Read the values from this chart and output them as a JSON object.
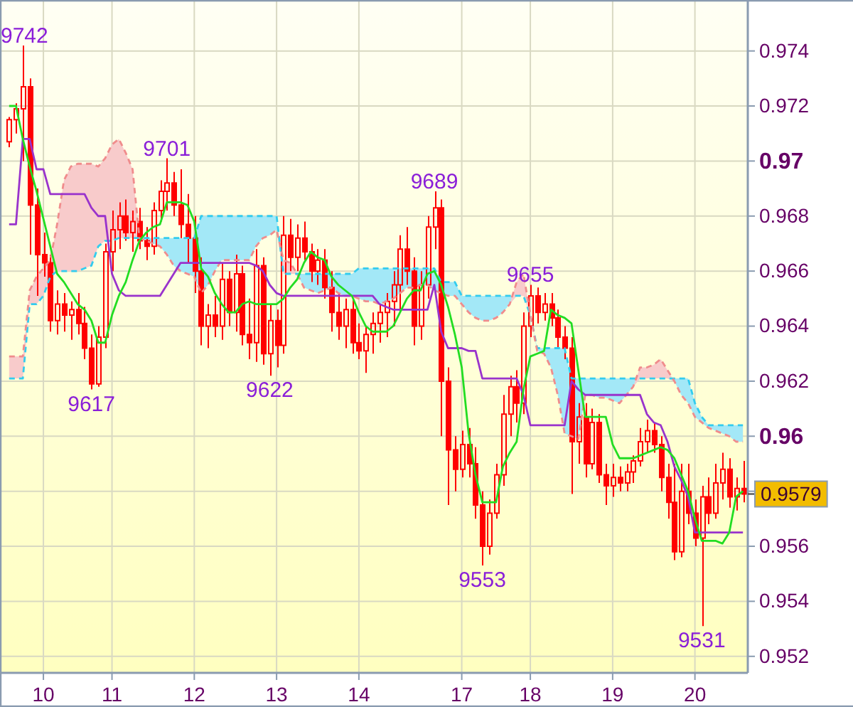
{
  "chart_data": {
    "type": "candlestick",
    "color": "#ff0000",
    "ylim": [
      0.9514,
      0.9758
    ],
    "yticks": [
      0.952,
      0.954,
      0.956,
      {
        "value": 0.958,
        "label": null
      },
      0.96,
      0.962,
      0.964,
      0.966,
      0.968,
      0.97,
      0.972,
      0.974
    ],
    "grid": true,
    "categories": [
      null,
      null,
      null,
      null,
      null,
      "10",
      null,
      null,
      null,
      null,
      null,
      null,
      null,
      null,
      null,
      "11",
      null,
      null,
      null,
      null,
      null,
      null,
      null,
      null,
      null,
      null,
      null,
      "12",
      null,
      null,
      null,
      null,
      null,
      null,
      null,
      null,
      null,
      null,
      null,
      "13",
      null,
      null,
      null,
      null,
      null,
      null,
      null,
      null,
      null,
      null,
      null,
      "14",
      null,
      null,
      null,
      null,
      null,
      null,
      null,
      null,
      null,
      null,
      null,
      null,
      null,
      null,
      "17",
      null,
      null,
      null,
      null,
      null,
      null,
      null,
      null,
      null,
      "18",
      null,
      null,
      null,
      null,
      null,
      null,
      null,
      null,
      null,
      null,
      null,
      "19",
      null,
      null,
      null,
      null,
      null,
      null,
      null,
      null,
      null,
      null,
      null,
      "20",
      null,
      null,
      null,
      null,
      null,
      null,
      null
    ],
    "ohlc": [
      [
        0.9707,
        0.9716,
        0.9705,
        0.9715
      ],
      [
        0.9715,
        0.9721,
        0.971,
        0.9719
      ],
      [
        0.9719,
        0.9742,
        0.97,
        0.9727
      ],
      [
        0.9727,
        0.973,
        0.9666,
        0.9684
      ],
      [
        0.9684,
        0.969,
        0.9651,
        0.9666
      ],
      [
        0.9666,
        0.9674,
        0.9658,
        0.9663
      ],
      [
        0.9663,
        0.9666,
        0.9638,
        0.9642
      ],
      [
        0.9642,
        0.9653,
        0.9637,
        0.9648
      ],
      [
        0.9648,
        0.9652,
        0.9638,
        0.9644
      ],
      [
        0.9644,
        0.9649,
        0.9635,
        0.9646
      ],
      [
        0.9646,
        0.9652,
        0.9637,
        0.9641
      ],
      [
        0.9641,
        0.9647,
        0.9628,
        0.9632
      ],
      [
        0.9632,
        0.9637,
        0.9617,
        0.9619
      ],
      [
        0.9619,
        0.964,
        0.9618,
        0.9636
      ],
      [
        0.9636,
        0.967,
        0.9632,
        0.9667
      ],
      [
        0.9667,
        0.9682,
        0.966,
        0.9675
      ],
      [
        0.9675,
        0.9685,
        0.9668,
        0.968
      ],
      [
        0.968,
        0.9686,
        0.9671,
        0.9674
      ],
      [
        0.9674,
        0.9682,
        0.9667,
        0.9678
      ],
      [
        0.9678,
        0.9683,
        0.9668,
        0.9671
      ],
      [
        0.9671,
        0.9676,
        0.9664,
        0.9669
      ],
      [
        0.9669,
        0.9685,
        0.9666,
        0.9682
      ],
      [
        0.9682,
        0.9693,
        0.9678,
        0.9689
      ],
      [
        0.9689,
        0.9701,
        0.9682,
        0.9692
      ],
      [
        0.9692,
        0.9696,
        0.968,
        0.9684
      ],
      [
        0.9684,
        0.9697,
        0.9672,
        0.9677
      ],
      [
        0.9677,
        0.9688,
        0.9663,
        0.9672
      ],
      [
        0.9672,
        0.968,
        0.9652,
        0.966
      ],
      [
        0.966,
        0.9665,
        0.9633,
        0.964
      ],
      [
        0.964,
        0.9648,
        0.9632,
        0.9644
      ],
      [
        0.9644,
        0.9651,
        0.9636,
        0.964
      ],
      [
        0.964,
        0.9663,
        0.9635,
        0.9657
      ],
      [
        0.9657,
        0.966,
        0.964,
        0.9645
      ],
      [
        0.9645,
        0.9666,
        0.9638,
        0.9659
      ],
      [
        0.9659,
        0.9662,
        0.9633,
        0.9637
      ],
      [
        0.9637,
        0.965,
        0.9628,
        0.9634
      ],
      [
        0.9634,
        0.9668,
        0.9627,
        0.9662
      ],
      [
        0.9662,
        0.9665,
        0.9626,
        0.963
      ],
      [
        0.963,
        0.9648,
        0.9622,
        0.9642
      ],
      [
        0.9642,
        0.9646,
        0.9625,
        0.9633
      ],
      [
        0.9633,
        0.968,
        0.963,
        0.9673
      ],
      [
        0.9673,
        0.9679,
        0.966,
        0.9665
      ],
      [
        0.9665,
        0.9677,
        0.966,
        0.9672
      ],
      [
        0.9672,
        0.9678,
        0.9664,
        0.9667
      ],
      [
        0.9667,
        0.967,
        0.9656,
        0.966
      ],
      [
        0.966,
        0.9668,
        0.9655,
        0.9664
      ],
      [
        0.9664,
        0.9668,
        0.965,
        0.9654
      ],
      [
        0.9654,
        0.966,
        0.9638,
        0.9645
      ],
      [
        0.9645,
        0.9652,
        0.9635,
        0.964
      ],
      [
        0.964,
        0.965,
        0.9632,
        0.9646
      ],
      [
        0.9646,
        0.965,
        0.963,
        0.9634
      ],
      [
        0.9634,
        0.9641,
        0.9628,
        0.9631
      ],
      [
        0.9631,
        0.964,
        0.9623,
        0.9637
      ],
      [
        0.9637,
        0.9645,
        0.963,
        0.9641
      ],
      [
        0.9641,
        0.9648,
        0.9634,
        0.9645
      ],
      [
        0.9645,
        0.9652,
        0.9636,
        0.9649
      ],
      [
        0.9649,
        0.966,
        0.964,
        0.9655
      ],
      [
        0.9655,
        0.9673,
        0.9645,
        0.9668
      ],
      [
        0.9668,
        0.9676,
        0.9655,
        0.966
      ],
      [
        0.966,
        0.9665,
        0.9633,
        0.964
      ],
      [
        0.964,
        0.966,
        0.9635,
        0.9655
      ],
      [
        0.9655,
        0.968,
        0.965,
        0.9676
      ],
      [
        0.9676,
        0.9689,
        0.9668,
        0.9683
      ],
      [
        0.9683,
        0.9686,
        0.96,
        0.962
      ],
      [
        0.962,
        0.9625,
        0.9575,
        0.9595
      ],
      [
        0.9595,
        0.96,
        0.958,
        0.9588
      ],
      [
        0.9588,
        0.9602,
        0.9585,
        0.9597
      ],
      [
        0.9597,
        0.9603,
        0.9585,
        0.959
      ],
      [
        0.959,
        0.9596,
        0.957,
        0.9575
      ],
      [
        0.9575,
        0.958,
        0.9553,
        0.956
      ],
      [
        0.956,
        0.9577,
        0.9557,
        0.9572
      ],
      [
        0.9572,
        0.959,
        0.957,
        0.9586
      ],
      [
        0.9586,
        0.9615,
        0.9582,
        0.9608
      ],
      [
        0.9608,
        0.9622,
        0.96,
        0.9618
      ],
      [
        0.9618,
        0.9624,
        0.9605,
        0.9612
      ],
      [
        0.9612,
        0.9645,
        0.9608,
        0.964
      ],
      [
        0.964,
        0.9655,
        0.9636,
        0.9651
      ],
      [
        0.9651,
        0.9654,
        0.9641,
        0.9645
      ],
      [
        0.9645,
        0.9652,
        0.9642,
        0.9648
      ],
      [
        0.9648,
        0.9652,
        0.964,
        0.9643
      ],
      [
        0.9643,
        0.9646,
        0.9632,
        0.9636
      ],
      [
        0.9636,
        0.964,
        0.9628,
        0.9632
      ],
      [
        0.9632,
        0.9636,
        0.9579,
        0.9598
      ],
      [
        0.9598,
        0.9612,
        0.959,
        0.9607
      ],
      [
        0.9607,
        0.9612,
        0.9585,
        0.959
      ],
      [
        0.959,
        0.961,
        0.9588,
        0.9605
      ],
      [
        0.9605,
        0.9608,
        0.9583,
        0.9586
      ],
      [
        0.9586,
        0.959,
        0.9575,
        0.9582
      ],
      [
        0.9582,
        0.959,
        0.9578,
        0.9585
      ],
      [
        0.9585,
        0.9589,
        0.958,
        0.9583
      ],
      [
        0.9583,
        0.959,
        0.958,
        0.9587
      ],
      [
        0.9587,
        0.9593,
        0.9583,
        0.9591
      ],
      [
        0.9591,
        0.9603,
        0.9589,
        0.9598
      ],
      [
        0.9598,
        0.9606,
        0.9594,
        0.9602
      ],
      [
        0.9602,
        0.9605,
        0.9594,
        0.9597
      ],
      [
        0.9597,
        0.96,
        0.958,
        0.9585
      ],
      [
        0.9585,
        0.959,
        0.957,
        0.9576
      ],
      [
        0.9576,
        0.959,
        0.9555,
        0.9558
      ],
      [
        0.9558,
        0.959,
        0.9556,
        0.958
      ],
      [
        0.958,
        0.959,
        0.9568,
        0.9572
      ],
      [
        0.9572,
        0.9577,
        0.956,
        0.9563
      ],
      [
        0.9563,
        0.9582,
        0.9531,
        0.9578
      ],
      [
        0.9578,
        0.9585,
        0.9568,
        0.9572
      ],
      [
        0.9572,
        0.959,
        0.957,
        0.9583
      ],
      [
        0.9583,
        0.9594,
        0.9577,
        0.9588
      ],
      [
        0.9588,
        0.9592,
        0.9574,
        0.9578
      ],
      [
        0.9578,
        0.9585,
        0.9573,
        0.9581
      ],
      [
        0.9581,
        0.9591,
        0.9576,
        0.9579
      ]
    ],
    "series": [
      {
        "type": "line",
        "color": "#33ccee",
        "line_style": "dashed",
        "values": [
          0.9621,
          0.9621,
          0.9621,
          0.9648,
          0.9648,
          0.9651,
          0.9658,
          0.966,
          0.966,
          0.966,
          0.966,
          0.9661,
          0.9662,
          0.9669,
          0.9671,
          0.9671,
          0.9672,
          0.9672,
          0.9672,
          0.9672,
          0.9672,
          0.9672,
          0.9672,
          0.9672,
          0.9672,
          0.9672,
          0.9672,
          0.9672,
          0.968,
          0.968,
          0.968,
          0.968,
          0.968,
          0.968,
          0.968,
          0.968,
          0.968,
          0.968,
          0.968,
          0.968,
          0.9659,
          0.9659,
          0.9659,
          0.9659,
          0.9659,
          0.9659,
          0.9659,
          0.9659,
          0.9659,
          0.9659,
          0.9659,
          0.9661,
          0.9661,
          0.9661,
          0.9661,
          0.9661,
          0.9661,
          0.9661,
          0.9661,
          0.9661,
          0.9661,
          0.9661,
          0.9661,
          0.9656,
          0.9656,
          0.9656,
          0.9651,
          0.9651,
          0.9651,
          0.9651,
          0.9651,
          0.9651,
          0.9651,
          0.9651,
          0.9651,
          0.9651,
          0.9644,
          0.9632,
          0.9632,
          0.9632,
          0.9632,
          0.9632,
          0.9621,
          0.9621,
          0.9621,
          0.9621,
          0.9621,
          0.9621,
          0.9621,
          0.9621,
          0.9621,
          0.9621,
          0.9621,
          0.9621,
          0.9621,
          0.9621,
          0.9621,
          0.9621,
          0.9621,
          0.9621,
          0.9612,
          0.9607,
          0.9604,
          0.9604,
          0.9604,
          0.9604,
          0.9604,
          0.9604
        ],
        "lower": [
          0.9621,
          0.9621,
          0.9621,
          0.9648,
          0.9648,
          0.9651,
          0.9658,
          0.966,
          0.966,
          0.966,
          0.966,
          0.9661,
          0.9662,
          0.9669,
          0.9671,
          0.9671,
          0.9672,
          0.9672,
          0.9672,
          0.9672,
          0.9671,
          0.967,
          0.9669,
          0.9666,
          0.9662,
          0.966,
          0.9659,
          0.9658,
          0.9652,
          0.9655,
          0.966,
          0.9664,
          0.9664,
          0.9664,
          0.9664,
          0.9664,
          0.9669,
          0.9672,
          0.9673,
          0.9675,
          0.9659,
          0.9659,
          0.9659,
          0.9654,
          0.9653,
          0.9652,
          0.9653,
          0.9654,
          0.9652,
          0.9651,
          0.9651,
          0.965,
          0.9649,
          0.9649,
          0.9648,
          0.9649,
          0.965,
          0.9652,
          0.9654,
          0.9654,
          0.9655,
          0.9655,
          0.9653,
          0.9652,
          0.9651,
          0.9651,
          0.9648,
          0.9645,
          0.9643,
          0.9642,
          0.9642,
          0.9643,
          0.9645,
          0.9648,
          0.9651,
          0.9651,
          0.9644,
          0.9631,
          0.963,
          0.9625,
          0.9615,
          0.9601,
          0.96,
          0.9599,
          0.9615,
          0.9615,
          0.9614,
          0.9614,
          0.9613,
          0.9612,
          0.9615,
          0.9618,
          0.9621,
          0.9621,
          0.9621,
          0.9621,
          0.9621,
          0.962,
          0.9615,
          0.9612,
          0.9607,
          0.9605,
          0.9603,
          0.9602,
          0.9601,
          0.96,
          0.9598,
          0.9598
        ],
        "upper": [
          0.9621,
          0.9621,
          0.9621,
          0.9648,
          0.9648,
          0.9651,
          0.9658,
          0.966,
          0.966,
          0.966,
          0.966,
          0.9661,
          0.9662,
          0.9669,
          0.9671,
          0.9671,
          0.9672,
          0.9672,
          0.9672,
          0.9672,
          0.9672,
          0.9672,
          0.9672,
          0.9672,
          0.9672,
          0.9672,
          0.9672,
          0.9672,
          0.968,
          0.968,
          0.968,
          0.968,
          0.968,
          0.968,
          0.968,
          0.968,
          0.968,
          0.968,
          0.968,
          0.968,
          0.9659,
          0.9659,
          0.9659,
          0.9659,
          0.9659,
          0.9659,
          0.9659,
          0.9659,
          0.9659,
          0.9659,
          0.9659,
          0.9661,
          0.9661,
          0.9661,
          0.9661,
          0.9661,
          0.9661,
          0.9661,
          0.9661,
          0.9661,
          0.9661,
          0.9661,
          0.9661,
          0.9656,
          0.9656,
          0.9656,
          0.9651,
          0.9651,
          0.9651,
          0.9651,
          0.9651,
          0.9651,
          0.9651,
          0.9651,
          0.9651,
          0.9651,
          0.9644,
          0.9632,
          0.9632,
          0.9632,
          0.9632,
          0.9632,
          0.9621,
          0.9621,
          0.9621,
          0.9621,
          0.9621,
          0.9621,
          0.9621,
          0.9621,
          0.9621,
          0.9621,
          0.9621,
          0.9621,
          0.9621,
          0.9621,
          0.9621,
          0.9621,
          0.9621,
          0.9621,
          0.9612,
          0.9607,
          0.9604,
          0.9604,
          0.9604,
          0.9604,
          0.9604,
          0.9604
        ]
      },
      {
        "type": "line",
        "color": "#f08c8c",
        "line_style": "dashed",
        "values": [
          0.9629,
          0.9629,
          0.9629,
          0.9653,
          0.9658,
          0.9661,
          0.9664,
          0.9677,
          0.9693,
          0.9698,
          0.9699,
          0.9699,
          0.9699,
          0.9698,
          0.9701,
          0.9706,
          0.9708,
          0.9703,
          0.9697,
          0.9672,
          0.9671,
          0.967,
          0.9669,
          0.9666,
          0.9662,
          0.966,
          0.9659,
          0.9658,
          0.9652,
          0.9655,
          0.966,
          0.9664,
          0.9664,
          0.9664,
          0.9664,
          0.9664,
          0.9669,
          0.9672,
          0.9673,
          0.9675,
          0.9664,
          0.9663,
          0.9659,
          0.9654,
          0.9653,
          0.9652,
          0.9653,
          0.9654,
          0.9652,
          0.9651,
          0.9651,
          0.965,
          0.9649,
          0.9649,
          0.9648,
          0.9649,
          0.965,
          0.9652,
          0.9654,
          0.9654,
          0.9655,
          0.9655,
          0.9653,
          0.9652,
          0.9651,
          0.9651,
          0.9648,
          0.9645,
          0.9643,
          0.9642,
          0.9642,
          0.9643,
          0.9645,
          0.9648,
          0.9656,
          0.9659,
          0.9644,
          0.9631,
          0.963,
          0.9625,
          0.9615,
          0.9601,
          0.96,
          0.9599,
          0.9615,
          0.9615,
          0.9614,
          0.9614,
          0.9613,
          0.9612,
          0.9615,
          0.9618,
          0.9625,
          0.9625,
          0.9626,
          0.9628,
          0.9624,
          0.962,
          0.9615,
          0.9612,
          0.9607,
          0.9605,
          0.9603,
          0.9602,
          0.9601,
          0.96,
          0.9598,
          0.9598
        ],
        "lower": [
          0.9621,
          0.9621,
          0.9621,
          0.9648,
          0.9648,
          0.9651,
          0.9658,
          0.966,
          0.966,
          0.966,
          0.966,
          0.9661,
          0.9662,
          0.9669,
          0.9671,
          0.9671,
          0.9672,
          0.9672,
          0.9672,
          0.9672,
          0.9671,
          0.967,
          0.9669,
          0.9666,
          0.9662,
          0.966,
          0.9659,
          0.9658,
          0.9652,
          0.9655,
          0.966,
          0.9664,
          0.9664,
          0.9664,
          0.9664,
          0.9664,
          0.9669,
          0.9672,
          0.9673,
          0.9675,
          0.9659,
          0.9659,
          0.9659,
          0.9654,
          0.9653,
          0.9652,
          0.9653,
          0.9654,
          0.9652,
          0.9651,
          0.9651,
          0.965,
          0.9649,
          0.9649,
          0.9648,
          0.9649,
          0.965,
          0.9652,
          0.9654,
          0.9654,
          0.9655,
          0.9655,
          0.9653,
          0.9652,
          0.9651,
          0.9651,
          0.9648,
          0.9645,
          0.9643,
          0.9642,
          0.9642,
          0.9643,
          0.9645,
          0.9648,
          0.9651,
          0.9651,
          0.9644,
          0.9631,
          0.963,
          0.9625,
          0.9615,
          0.9601,
          0.96,
          0.9599,
          0.9615,
          0.9615,
          0.9614,
          0.9614,
          0.9613,
          0.9612,
          0.9615,
          0.9618,
          0.9621,
          0.9621,
          0.9621,
          0.9621,
          0.9621,
          0.962,
          0.9615,
          0.9612,
          0.9607,
          0.9605,
          0.9603,
          0.9602,
          0.9601,
          0.96,
          0.9598,
          0.9598
        ],
        "upper": [
          0.9629,
          0.9629,
          0.9629,
          0.9653,
          0.9658,
          0.9661,
          0.9664,
          0.9677,
          0.9693,
          0.9698,
          0.9699,
          0.9699,
          0.9699,
          0.9698,
          0.9701,
          0.9706,
          0.9708,
          0.9703,
          0.9697,
          0.9672,
          0.9671,
          0.967,
          0.9669,
          0.9666,
          0.9662,
          0.966,
          0.9659,
          0.9658,
          0.9652,
          0.9655,
          0.966,
          0.9664,
          0.9664,
          0.9664,
          0.9664,
          0.9664,
          0.9669,
          0.9672,
          0.9673,
          0.9675,
          0.9664,
          0.9663,
          0.9659,
          0.9654,
          0.9653,
          0.9652,
          0.9653,
          0.9654,
          0.9652,
          0.9651,
          0.9651,
          0.965,
          0.9649,
          0.9649,
          0.9648,
          0.9649,
          0.965,
          0.9652,
          0.9654,
          0.9654,
          0.9655,
          0.9655,
          0.9653,
          0.9652,
          0.9651,
          0.9651,
          0.9648,
          0.9645,
          0.9643,
          0.9642,
          0.9642,
          0.9643,
          0.9645,
          0.9648,
          0.9656,
          0.9659,
          0.9644,
          0.9631,
          0.963,
          0.9625,
          0.9615,
          0.9601,
          0.96,
          0.9599,
          0.9615,
          0.9615,
          0.9614,
          0.9614,
          0.9613,
          0.9612,
          0.9615,
          0.9618,
          0.9625,
          0.9625,
          0.9626,
          0.9628,
          0.9624,
          0.962,
          0.9615,
          0.9612,
          0.9607,
          0.9605,
          0.9603,
          0.9602,
          0.9601,
          0.96,
          0.9598,
          0.9598
        ]
      },
      {
        "type": "line",
        "color": "#9933cc",
        "values": [
          0.9677,
          0.9677,
          0.9708,
          0.9708,
          0.9697,
          0.9697,
          0.9688,
          0.9688,
          0.9688,
          0.9688,
          0.9688,
          0.9688,
          0.9683,
          0.968,
          0.968,
          0.9659,
          0.9653,
          0.9651,
          0.9651,
          0.9651,
          0.9651,
          0.9651,
          0.9651,
          0.9655,
          0.9659,
          0.9663,
          0.9663,
          0.9663,
          0.9663,
          0.9663,
          0.9663,
          0.9663,
          0.9663,
          0.9663,
          0.9663,
          0.9663,
          0.9662,
          0.966,
          0.9655,
          0.9652,
          0.9651,
          0.9651,
          0.9651,
          0.9651,
          0.9651,
          0.9651,
          0.9651,
          0.9651,
          0.9651,
          0.9651,
          0.9651,
          0.9651,
          0.9651,
          0.9651,
          0.9648,
          0.9647,
          0.9646,
          0.9646,
          0.9646,
          0.9646,
          0.9646,
          0.9646,
          0.9655,
          0.9638,
          0.9632,
          0.9632,
          0.9632,
          0.9631,
          0.9631,
          0.9621,
          0.9621,
          0.9621,
          0.9621,
          0.9621,
          0.9621,
          0.9615,
          0.9604,
          0.9604,
          0.9604,
          0.9604,
          0.9604,
          0.9604,
          0.962,
          0.9617,
          0.9615,
          0.9615,
          0.9615,
          0.9615,
          0.9615,
          0.9615,
          0.9615,
          0.9615,
          0.9615,
          0.9608,
          0.9605,
          0.9604,
          0.9598,
          0.9589,
          0.9584,
          0.9578,
          0.9565,
          0.9565,
          0.9565,
          0.9565,
          0.9565,
          0.9565,
          0.9565,
          0.9565
        ]
      },
      {
        "type": "line",
        "color": "#22dd22",
        "values": [
          0.972,
          0.972,
          0.9708,
          0.9698,
          0.9689,
          0.9679,
          0.9669,
          0.9659,
          0.9656,
          0.9652,
          0.9648,
          0.9646,
          0.9642,
          0.9634,
          0.9634,
          0.9644,
          0.9651,
          0.9656,
          0.9664,
          0.9671,
          0.9674,
          0.9676,
          0.9677,
          0.9685,
          0.9685,
          0.9685,
          0.9684,
          0.9678,
          0.9661,
          0.9658,
          0.9652,
          0.9648,
          0.9645,
          0.9645,
          0.9648,
          0.9649,
          0.9648,
          0.9648,
          0.9648,
          0.9648,
          0.965,
          0.9654,
          0.9657,
          0.9663,
          0.9667,
          0.9665,
          0.9664,
          0.9658,
          0.9655,
          0.9653,
          0.9651,
          0.9645,
          0.964,
          0.9638,
          0.9638,
          0.9638,
          0.964,
          0.9645,
          0.965,
          0.9653,
          0.9653,
          0.9659,
          0.966,
          0.9655,
          0.9647,
          0.9637,
          0.9625,
          0.9601,
          0.9586,
          0.9576,
          0.9576,
          0.9576,
          0.9589,
          0.9594,
          0.9598,
          0.9617,
          0.9629,
          0.963,
          0.9631,
          0.9646,
          0.9644,
          0.9643,
          0.9641,
          0.9624,
          0.9607,
          0.9607,
          0.9607,
          0.9607,
          0.9597,
          0.9592,
          0.9592,
          0.9592,
          0.9593,
          0.9594,
          0.9595,
          0.9596,
          0.9595,
          0.9592,
          0.9586,
          0.958,
          0.957,
          0.9562,
          0.9562,
          0.9562,
          0.9561,
          0.9565,
          0.9578,
          0.958
        ]
      }
    ],
    "annotations": [
      {
        "text": "9742",
        "y": 0.9742
      },
      {
        "text": "9617",
        "y": 0.9617
      },
      {
        "text": "9701",
        "y": 0.9701
      },
      {
        "text": "9622",
        "y": 0.9622
      },
      {
        "text": "9689",
        "y": 0.9689
      },
      {
        "text": "9553",
        "y": 0.9553
      },
      {
        "text": "9655",
        "y": 0.9655
      },
      {
        "text": "9531",
        "y": 0.9531
      },
      "0.9579"
    ]
  }
}
